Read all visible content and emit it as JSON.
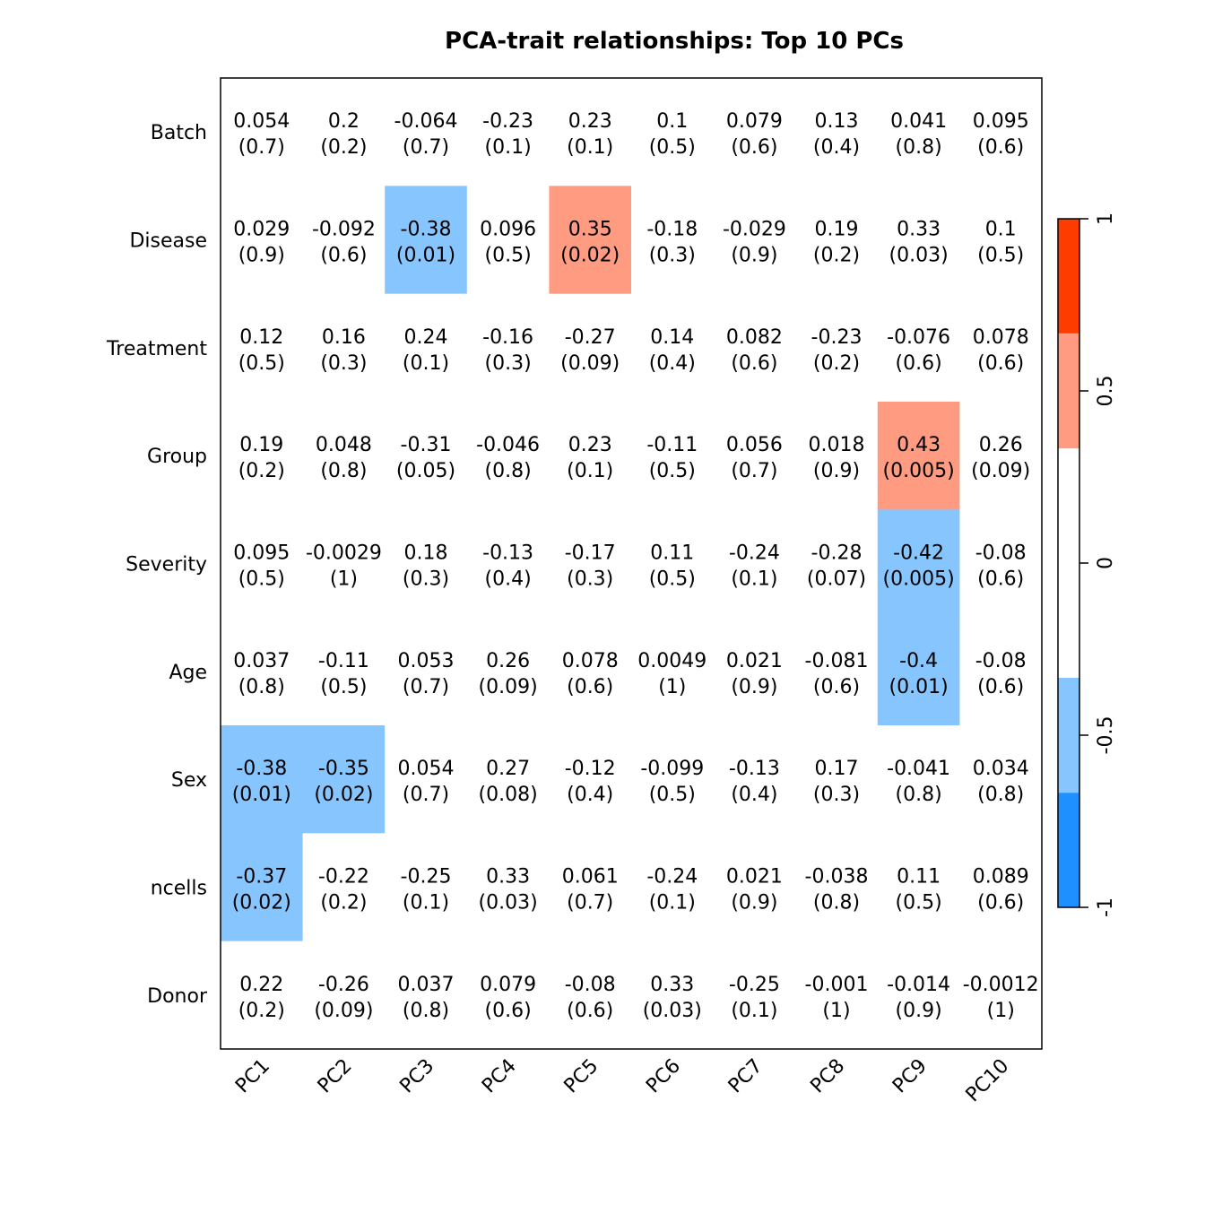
{
  "chart_data": {
    "type": "heatmap",
    "title": "PCA-trait relationships: Top 10 PCs",
    "xlabel": "",
    "ylabel": "",
    "columns": [
      "PC1",
      "PC2",
      "PC3",
      "PC4",
      "PC5",
      "PC6",
      "PC7",
      "PC8",
      "PC9",
      "PC10"
    ],
    "rows": [
      "Batch",
      "Disease",
      "Treatment",
      "Group",
      "Severity",
      "Age",
      "Sex",
      "ncells",
      "Donor"
    ],
    "correlations": [
      [
        "0.054",
        "0.2",
        "-0.064",
        "-0.23",
        "0.23",
        "0.1",
        "0.079",
        "0.13",
        "0.041",
        "0.095"
      ],
      [
        "0.029",
        "-0.092",
        "-0.38",
        "0.096",
        "0.35",
        "-0.18",
        "-0.029",
        "0.19",
        "0.33",
        "0.1"
      ],
      [
        "0.12",
        "0.16",
        "0.24",
        "-0.16",
        "-0.27",
        "0.14",
        "0.082",
        "-0.23",
        "-0.076",
        "0.078"
      ],
      [
        "0.19",
        "0.048",
        "-0.31",
        "-0.046",
        "0.23",
        "-0.11",
        "0.056",
        "0.018",
        "0.43",
        "0.26"
      ],
      [
        "0.095",
        "-0.0029",
        "0.18",
        "-0.13",
        "-0.17",
        "0.11",
        "-0.24",
        "-0.28",
        "-0.42",
        "-0.08"
      ],
      [
        "0.037",
        "-0.11",
        "0.053",
        "0.26",
        "0.078",
        "0.0049",
        "0.021",
        "-0.081",
        "-0.4",
        "-0.08"
      ],
      [
        "-0.38",
        "-0.35",
        "0.054",
        "0.27",
        "-0.12",
        "-0.099",
        "-0.13",
        "0.17",
        "-0.041",
        "0.034"
      ],
      [
        "-0.37",
        "-0.22",
        "-0.25",
        "0.33",
        "0.061",
        "-0.24",
        "0.021",
        "-0.038",
        "0.11",
        "0.089"
      ],
      [
        "0.22",
        "-0.26",
        "0.037",
        "0.079",
        "-0.08",
        "0.33",
        "-0.25",
        "-0.001",
        "-0.014",
        "-0.0012"
      ]
    ],
    "pvalues": [
      [
        "(0.7)",
        "(0.2)",
        "(0.7)",
        "(0.1)",
        "(0.1)",
        "(0.5)",
        "(0.6)",
        "(0.4)",
        "(0.8)",
        "(0.6)"
      ],
      [
        "(0.9)",
        "(0.6)",
        "(0.01)",
        "(0.5)",
        "(0.02)",
        "(0.3)",
        "(0.9)",
        "(0.2)",
        "(0.03)",
        "(0.5)"
      ],
      [
        "(0.5)",
        "(0.3)",
        "(0.1)",
        "(0.3)",
        "(0.09)",
        "(0.4)",
        "(0.6)",
        "(0.2)",
        "(0.6)",
        "(0.6)"
      ],
      [
        "(0.2)",
        "(0.8)",
        "(0.05)",
        "(0.8)",
        "(0.1)",
        "(0.5)",
        "(0.7)",
        "(0.9)",
        "(0.005)",
        "(0.09)"
      ],
      [
        "(0.5)",
        "(1)",
        "(0.3)",
        "(0.4)",
        "(0.3)",
        "(0.5)",
        "(0.1)",
        "(0.07)",
        "(0.005)",
        "(0.6)"
      ],
      [
        "(0.8)",
        "(0.5)",
        "(0.7)",
        "(0.09)",
        "(0.6)",
        "(1)",
        "(0.9)",
        "(0.6)",
        "(0.01)",
        "(0.6)"
      ],
      [
        "(0.01)",
        "(0.02)",
        "(0.7)",
        "(0.08)",
        "(0.4)",
        "(0.5)",
        "(0.4)",
        "(0.3)",
        "(0.8)",
        "(0.8)"
      ],
      [
        "(0.02)",
        "(0.2)",
        "(0.1)",
        "(0.03)",
        "(0.7)",
        "(0.1)",
        "(0.9)",
        "(0.8)",
        "(0.5)",
        "(0.6)"
      ],
      [
        "(0.2)",
        "(0.09)",
        "(0.8)",
        "(0.6)",
        "(0.6)",
        "(0.03)",
        "(0.1)",
        "(1)",
        "(0.9)",
        "(1)"
      ]
    ],
    "colorscale": {
      "range": [
        -1,
        1
      ],
      "breaks": [
        -1,
        -0.667,
        -0.333,
        0.333,
        0.667,
        1
      ],
      "colors": [
        "#1E90FF",
        "#87C5FF",
        "#FFFFFF",
        "#FF9B80",
        "#FF3C00"
      ],
      "ticks": [
        "-1",
        "-0.5",
        "0",
        "0.5",
        "1"
      ],
      "tick_values": [
        -1,
        -0.5,
        0,
        0.5,
        1
      ]
    },
    "legend": "right"
  }
}
